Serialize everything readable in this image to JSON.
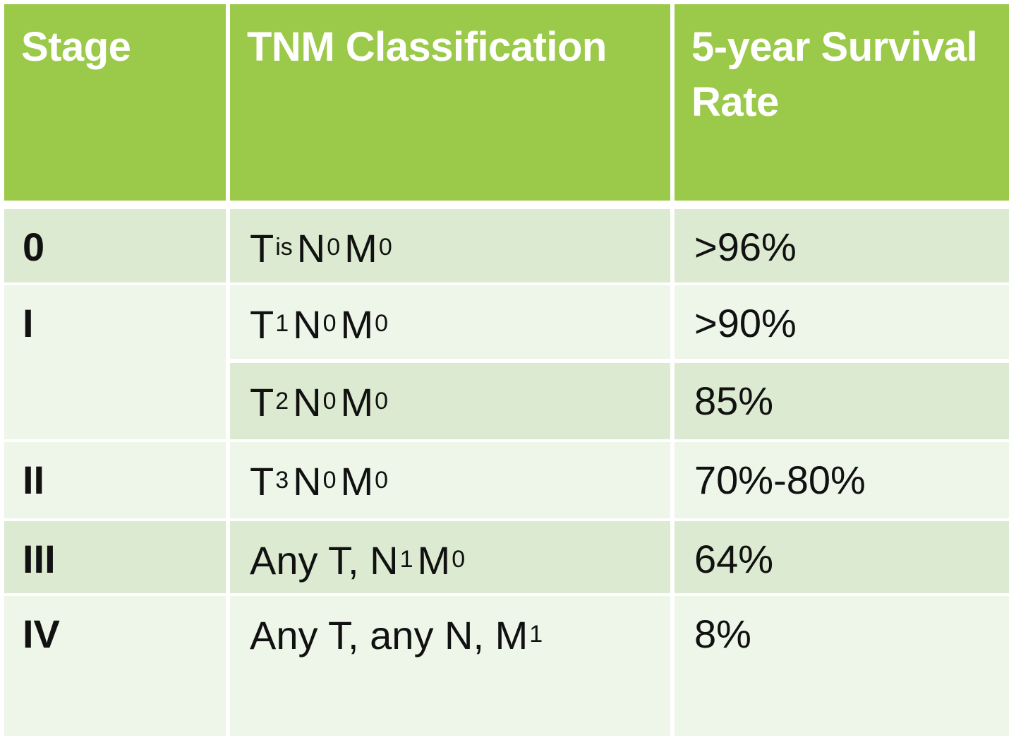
{
  "table": {
    "headers": [
      "Stage",
      "TNM Classification",
      "5-year Survival Rate"
    ],
    "rows": [
      {
        "stage": "0",
        "tnm": [
          [
            "T",
            "is"
          ],
          [
            "N",
            "0"
          ],
          [
            "M",
            "0"
          ]
        ],
        "survival": ">96%"
      },
      {
        "stage": "I",
        "tnm": [
          [
            "T",
            "1"
          ],
          [
            "N",
            "0"
          ],
          [
            "M",
            "0"
          ]
        ],
        "survival": ">90%"
      },
      {
        "stage": "",
        "tnm": [
          [
            "T",
            "2"
          ],
          [
            "N",
            "0"
          ],
          [
            "M",
            "0"
          ]
        ],
        "survival": "85%"
      },
      {
        "stage": "II",
        "tnm": [
          [
            "T",
            "3"
          ],
          [
            "N",
            "0"
          ],
          [
            "M",
            "0"
          ]
        ],
        "survival": "70%-80%"
      },
      {
        "stage": "III",
        "tnm": [
          [
            "Any T, N",
            "1"
          ],
          [
            "M",
            "0"
          ]
        ],
        "survival": "64%"
      },
      {
        "stage": "IV",
        "tnm": [
          [
            "Any T, any N, M",
            "1"
          ]
        ],
        "survival": "8%"
      }
    ]
  },
  "colors": {
    "header_bg": "#9bc94a",
    "row_dark": "#dbead0",
    "row_light": "#eef5e9"
  }
}
